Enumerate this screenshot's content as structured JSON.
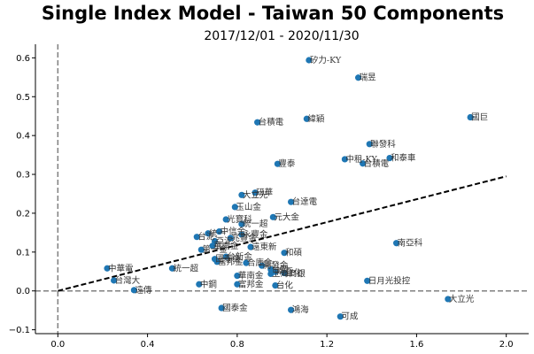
{
  "chart_data": {
    "type": "scatter",
    "title": "Single Index Model - Taiwan 50 Components",
    "subtitle": "2017/12/01 - 2020/11/30",
    "xlabel": "",
    "ylabel": "",
    "xlim": [
      -0.1,
      2.1
    ],
    "ylim": [
      -0.11,
      0.635
    ],
    "xticks": [
      0.0,
      0.4,
      0.8,
      1.2,
      1.6,
      2.0
    ],
    "xtick_labels": [
      "0.0",
      "0.4",
      "0.8",
      "1.2",
      "1.6",
      "2.0"
    ],
    "yticks": [
      -0.1,
      0.0,
      0.1,
      0.2,
      0.3,
      0.4,
      0.5,
      0.6
    ],
    "ytick_labels": [
      "−0.1",
      "0.0",
      "0.1",
      "0.2",
      "0.3",
      "0.4",
      "0.5",
      "0.6"
    ],
    "reference_lines": {
      "vertical_x": 0.0,
      "horizontal_y": 0.0
    },
    "regression_line": {
      "x": [
        0.0,
        2.0
      ],
      "y": [
        0.0,
        0.295
      ]
    },
    "marker_color": "#1f77b4",
    "points": [
      {
        "label": "矽力-KY",
        "x": 1.12,
        "y": 0.594
      },
      {
        "label": "瑞昱",
        "x": 1.34,
        "y": 0.549
      },
      {
        "label": "國巨",
        "x": 1.84,
        "y": 0.447
      },
      {
        "label": "台積電",
        "x": 0.89,
        "y": 0.434
      },
      {
        "label": "緯穎",
        "x": 1.11,
        "y": 0.443
      },
      {
        "label": "聯發科",
        "x": 1.39,
        "y": 0.378
      },
      {
        "label": "中租-KY",
        "x": 1.28,
        "y": 0.339
      },
      {
        "label": "和泰車",
        "x": 1.48,
        "y": 0.342
      },
      {
        "label": "台積電",
        "x": 1.36,
        "y": 0.328
      },
      {
        "label": "豐泰",
        "x": 0.98,
        "y": 0.327
      },
      {
        "label": "研華",
        "x": 0.88,
        "y": 0.253
      },
      {
        "label": "大立光",
        "x": 0.82,
        "y": 0.247
      },
      {
        "label": "台達電",
        "x": 1.04,
        "y": 0.229
      },
      {
        "label": "玉山金",
        "x": 0.79,
        "y": 0.216
      },
      {
        "label": "元大金",
        "x": 0.96,
        "y": 0.19
      },
      {
        "label": "光寶科",
        "x": 0.75,
        "y": 0.184
      },
      {
        "label": "統一超",
        "x": 0.82,
        "y": 0.172
      },
      {
        "label": "中信金",
        "x": 0.72,
        "y": 0.153
      },
      {
        "label": "永豐金",
        "x": 0.82,
        "y": 0.145
      },
      {
        "label": "兆豐金",
        "x": 0.77,
        "y": 0.136
      },
      {
        "label": "台泥",
        "x": 0.62,
        "y": 0.139
      },
      {
        "label": "統一",
        "x": 0.67,
        "y": 0.148
      },
      {
        "label": "亞泥",
        "x": 0.7,
        "y": 0.128
      },
      {
        "label": "華南金",
        "x": 0.69,
        "y": 0.116
      },
      {
        "label": "遠東新",
        "x": 0.86,
        "y": 0.113
      },
      {
        "label": "和碩",
        "x": 1.01,
        "y": 0.098
      },
      {
        "label": "南亞科",
        "x": 1.51,
        "y": 0.123
      },
      {
        "label": "第一金",
        "x": 0.64,
        "y": 0.106
      },
      {
        "label": "台新金",
        "x": 0.75,
        "y": 0.088
      },
      {
        "label": "國泰金",
        "x": 0.7,
        "y": 0.082
      },
      {
        "label": "富邦金",
        "x": 0.71,
        "y": 0.075
      },
      {
        "label": "合庫金",
        "x": 0.84,
        "y": 0.072
      },
      {
        "label": "開發金",
        "x": 0.91,
        "y": 0.065
      },
      {
        "label": "中華電",
        "x": 0.22,
        "y": 0.058
      },
      {
        "label": "統一超",
        "x": 0.51,
        "y": 0.058
      },
      {
        "label": "台塑",
        "x": 0.95,
        "y": 0.055
      },
      {
        "label": "南亞",
        "x": 0.97,
        "y": 0.049
      },
      {
        "label": "台化",
        "x": 1.01,
        "y": 0.046
      },
      {
        "label": "日月光投控",
        "x": 1.38,
        "y": 0.026
      },
      {
        "label": "台灣大",
        "x": 0.25,
        "y": 0.027
      },
      {
        "label": "遠傳",
        "x": 0.34,
        "y": 0.002
      },
      {
        "label": "中鋼",
        "x": 0.63,
        "y": 0.017
      },
      {
        "label": "華南金",
        "x": 0.8,
        "y": 0.039
      },
      {
        "label": "上海商銀",
        "x": 0.95,
        "y": 0.044
      },
      {
        "label": "富邦金",
        "x": 0.8,
        "y": 0.017
      },
      {
        "label": "台化",
        "x": 0.97,
        "y": 0.014
      },
      {
        "label": "鴻海",
        "x": 1.04,
        "y": -0.049
      },
      {
        "label": "可成",
        "x": 1.26,
        "y": -0.066
      },
      {
        "label": "國泰金",
        "x": 0.73,
        "y": -0.044
      },
      {
        "label": "大立光",
        "x": 1.74,
        "y": -0.021
      }
    ]
  }
}
